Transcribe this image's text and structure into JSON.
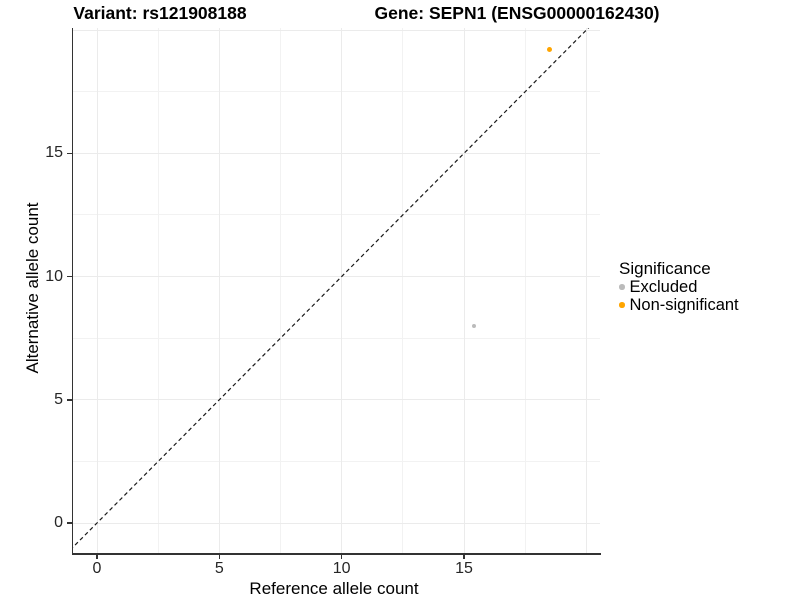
{
  "chart_data": {
    "type": "scatter",
    "titles": [
      "Variant: rs121908188",
      "Gene: SEPN1 (ENSG00000162430)"
    ],
    "xlabel": "Reference allele count",
    "ylabel": "Alternative allele count",
    "xlim": [
      -1,
      20.6
    ],
    "ylim": [
      -1.2,
      20.1
    ],
    "x_ticks": {
      "major": [
        0,
        5,
        10,
        15,
        20
      ],
      "minor": [
        2.5,
        7.5,
        12.5,
        17.5
      ],
      "labeled": [
        0,
        5,
        10,
        15
      ]
    },
    "y_ticks": {
      "major": [
        0,
        5,
        10,
        15,
        20
      ],
      "minor": [
        2.5,
        7.5,
        12.5,
        17.5
      ],
      "labeled": [
        0,
        5,
        10,
        15
      ]
    },
    "grid": true,
    "identity_line": {
      "equation": "y = x",
      "style": "dashed",
      "color": "#1A1A1A"
    },
    "series": [
      {
        "name": "Excluded",
        "color": "#BBBBBB",
        "size": 4.6,
        "points": [
          {
            "x": 15.4,
            "y": 8.0
          }
        ]
      },
      {
        "name": "Non-significant",
        "color": "#FFA500",
        "size": 5.0,
        "points": [
          {
            "x": 18.5,
            "y": 19.2
          }
        ]
      }
    ],
    "legend": {
      "title": "Significance",
      "position": "right",
      "entries": [
        "Excluded",
        "Non-significant"
      ]
    },
    "colors": {
      "grid_major": "#EBEBEB",
      "grid_minor": "#F2F2F2",
      "axis_line": "#333333"
    }
  }
}
